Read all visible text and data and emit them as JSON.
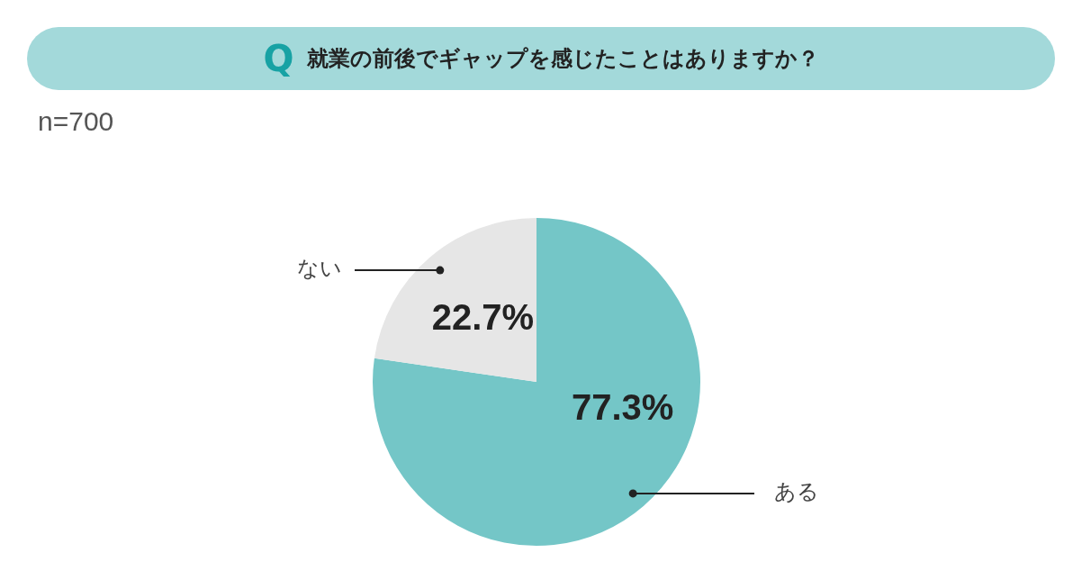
{
  "chart_data": {
    "type": "pie",
    "title": "就業の前後でギャップを感じたことはありますか？",
    "annotations": [
      "Q",
      "n=700"
    ],
    "categories": [
      "ある",
      "ない"
    ],
    "values": [
      77.3,
      22.7
    ],
    "colors": [
      "#74c6c7",
      "#e6e6e6"
    ],
    "value_labels": [
      "77.3%",
      "22.7%"
    ],
    "legend": false
  }
}
